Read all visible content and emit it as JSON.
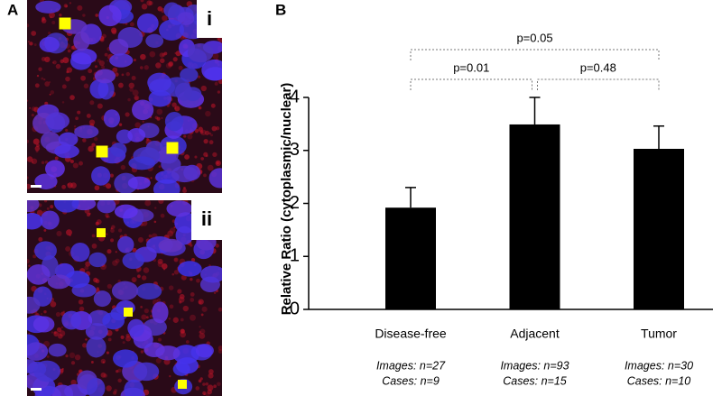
{
  "panels": {
    "a": {
      "label": "A",
      "images": [
        {
          "label": "i"
        },
        {
          "label": "ii"
        }
      ]
    },
    "b": {
      "label": "B"
    }
  },
  "chart_data": {
    "type": "bar",
    "y_label": "Relative Ratio (cytoplasmic/nuclear)",
    "categories": [
      "Disease-free",
      "Adjacent",
      "Tumor"
    ],
    "series": [
      {
        "color": "#000000",
        "values": [
          1.92,
          3.49,
          3.03
        ],
        "errors": [
          0.38,
          0.51,
          0.43
        ]
      }
    ],
    "ylim": [
      0,
      4
    ],
    "yticks": [
      0,
      1,
      2,
      3,
      4
    ],
    "comparisons": [
      {
        "categories": [
          "Disease-free",
          "Tumor"
        ],
        "label": "p=0.05"
      },
      {
        "categories": [
          "Disease-free",
          "Adjacent"
        ],
        "label": "p=0.01"
      },
      {
        "categories": [
          "Adjacent",
          "Tumor"
        ],
        "label": "p=0.48"
      }
    ],
    "sample_info": [
      [
        "Images: n=27",
        "Cases: n=9"
      ],
      [
        "Images: n=93",
        "Cases: n=15"
      ],
      [
        "Images: n=30",
        "Cases: n=10"
      ]
    ]
  }
}
